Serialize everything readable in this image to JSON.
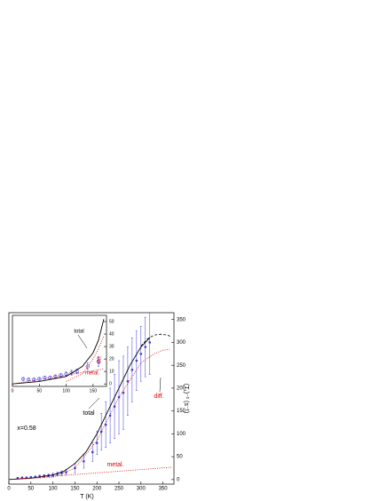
{
  "chart_data": [
    {
      "type": "line",
      "x_label": "T (K)",
      "y_label": "(T₁)⁻¹ (s⁻¹)",
      "xlim": [
        0,
        375
      ],
      "ylim": [
        -10,
        365
      ],
      "xticks": [
        0,
        50,
        100,
        150,
        200,
        250,
        300,
        350
      ],
      "yticks": [
        0,
        50,
        100,
        150,
        200,
        250,
        300,
        350
      ],
      "annotations": [
        "total",
        "diff.",
        "metal.",
        "x=0.58"
      ],
      "annotation_colors": [
        "#000000",
        "#e00000",
        "#e00000",
        "#000000"
      ],
      "series": [
        {
          "style": "points",
          "color": "#3a3ae0",
          "x": [
            20,
            30,
            40,
            50,
            60,
            70,
            80,
            90,
            100,
            110,
            120,
            130,
            150,
            170,
            190,
            200,
            210,
            220,
            230,
            240,
            250,
            260,
            270,
            280,
            290,
            300,
            310,
            320
          ],
          "values": [
            3,
            4,
            4,
            5,
            6,
            7,
            8,
            9,
            10,
            12,
            14,
            16,
            25,
            40,
            60,
            80,
            105,
            120,
            140,
            160,
            180,
            190,
            215,
            240,
            260,
            275,
            290,
            300
          ],
          "errors": [
            2,
            2,
            2,
            2,
            2,
            3,
            3,
            3,
            4,
            4,
            5,
            6,
            10,
            15,
            20,
            25,
            40,
            50,
            60,
            70,
            80,
            80,
            75,
            70,
            65,
            60,
            65,
            70
          ]
        },
        {
          "style": "solid",
          "color": "#000000",
          "x": [
            0,
            50,
            100,
            125,
            150,
            175,
            200,
            225,
            250,
            275,
            300,
            320
          ],
          "values": [
            0,
            3,
            10,
            18,
            35,
            60,
            100,
            150,
            200,
            250,
            290,
            310
          ]
        },
        {
          "style": "dashed",
          "color": "#000000",
          "x": [
            300,
            315,
            330,
            345,
            360,
            370
          ],
          "values": [
            292,
            308,
            316,
            318,
            316,
            312
          ]
        },
        {
          "style": "dotted",
          "color": "#e00000",
          "x": [
            0,
            100,
            150,
            200,
            250,
            300,
            330,
            350,
            365
          ],
          "values": [
            0,
            5,
            25,
            85,
            180,
            255,
            275,
            283,
            285
          ]
        },
        {
          "style": "dotted",
          "color": "#e00000",
          "x": [
            0,
            370
          ],
          "values": [
            0,
            27
          ]
        }
      ]
    },
    {
      "type": "line",
      "xlim": [
        0,
        175
      ],
      "ylim": [
        -2,
        55
      ],
      "xticks": [
        0,
        50,
        100,
        150
      ],
      "yticks": [
        0,
        10,
        20,
        30,
        40,
        50
      ],
      "annotations": [
        "total",
        "diff.",
        "metal."
      ],
      "annotation_colors": [
        "#000000",
        "#e00000",
        "#e00000"
      ],
      "series": [
        {
          "style": "circles",
          "color": "#3a3ae0",
          "x": [
            20,
            30,
            40,
            50,
            60,
            70,
            80,
            90,
            100,
            110,
            120,
            140,
            160
          ],
          "values": [
            4,
            3.5,
            3.5,
            4,
            5,
            5,
            6,
            7,
            8,
            9,
            10,
            14,
            18
          ],
          "errors": [
            1,
            1,
            1,
            1,
            1,
            1,
            1,
            1,
            1.5,
            2,
            2,
            3,
            4
          ]
        },
        {
          "style": "solid",
          "color": "#000000",
          "x": [
            0,
            50,
            100,
            130,
            150,
            160,
            170
          ],
          "values": [
            0,
            2,
            6,
            14,
            25,
            35,
            52
          ]
        },
        {
          "style": "dotted",
          "color": "#e00000",
          "x": [
            100,
            130,
            150,
            160,
            170
          ],
          "values": [
            2,
            8,
            20,
            28,
            38
          ]
        },
        {
          "style": "dotted",
          "color": "#e00000",
          "x": [
            0,
            170
          ],
          "values": [
            0,
            12
          ]
        }
      ]
    }
  ]
}
